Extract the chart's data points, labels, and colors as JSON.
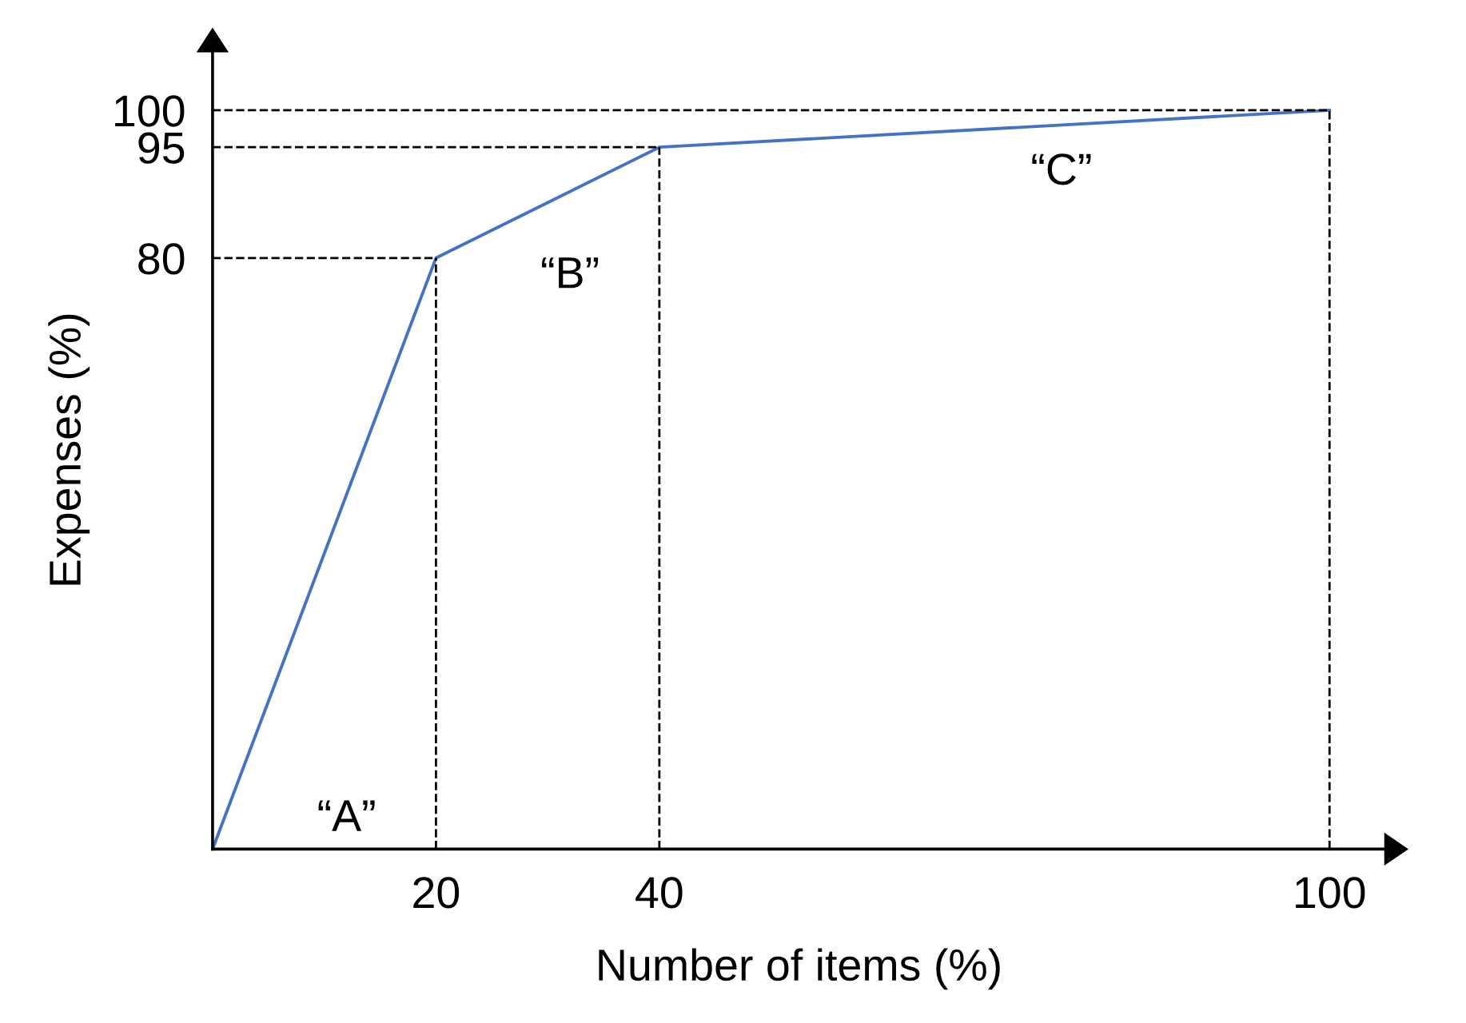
{
  "chart_data": {
    "type": "line",
    "xlabel": "Number of items (%)",
    "ylabel": "Expenses (%)",
    "series": [
      {
        "color": "#4472c4",
        "x": [
          0,
          20,
          40,
          100
        ],
        "values": [
          0,
          80,
          95,
          100
        ]
      }
    ],
    "xlim": [
      0,
      105
    ],
    "ylim": [
      0,
      108
    ],
    "xticks": [
      20,
      40,
      100
    ],
    "yticks": [
      80,
      95,
      100
    ],
    "ref_lines": [
      {
        "axis": "x",
        "value": 20,
        "line_style": "dashed",
        "color": "#000000"
      },
      {
        "axis": "x",
        "value": 40,
        "line_style": "dashed",
        "color": "#000000"
      },
      {
        "axis": "x",
        "value": 100,
        "line_style": "dashed",
        "color": "#000000"
      },
      {
        "axis": "y",
        "value": 80,
        "line_style": "dashed",
        "color": "#000000"
      },
      {
        "axis": "y",
        "value": 95,
        "line_style": "dashed",
        "color": "#000000"
      },
      {
        "axis": "y",
        "value": 100,
        "line_style": "dashed",
        "color": "#000000"
      }
    ],
    "annotations": [
      "“A”",
      "“B”",
      "“C”"
    ],
    "grid": false,
    "legend": false,
    "marker": "none",
    "line_style": "solid"
  }
}
